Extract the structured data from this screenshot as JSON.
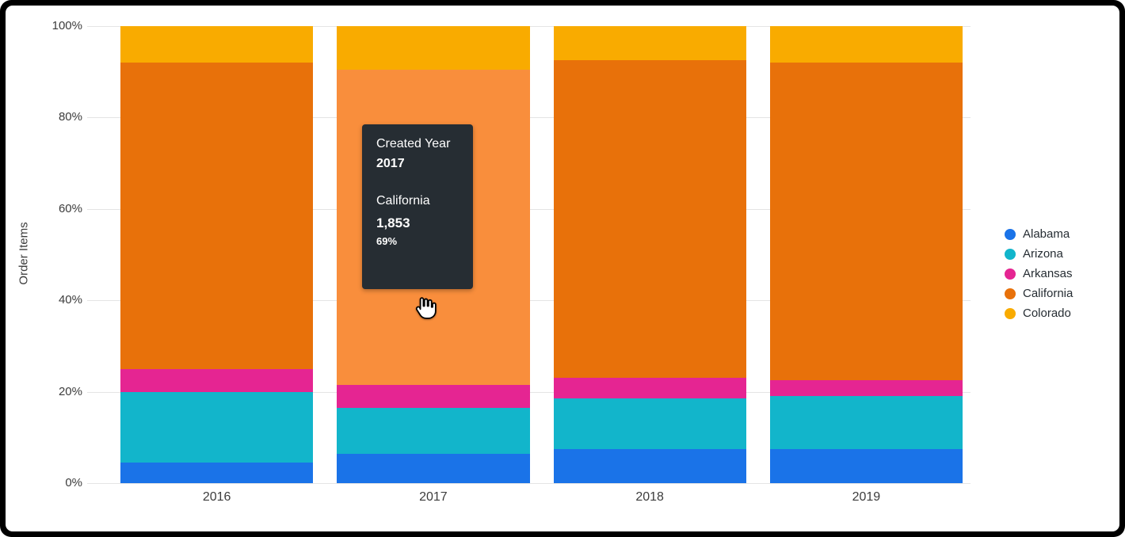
{
  "page": {
    "frame_color": "#000000",
    "card_color": "#ffffff"
  },
  "chart_data": {
    "type": "bar",
    "stacked": true,
    "percent_stacked": true,
    "title": "",
    "xlabel": "",
    "ylabel": "Order Items",
    "ylim": [
      0,
      100
    ],
    "y_ticks": [
      "0%",
      "20%",
      "40%",
      "60%",
      "80%",
      "100%"
    ],
    "grid": true,
    "categories": [
      "2016",
      "2017",
      "2018",
      "2019"
    ],
    "series": [
      {
        "name": "Alabama",
        "color": "#1A73E8",
        "values": [
          4.5,
          6.5,
          7.5,
          7.5
        ]
      },
      {
        "name": "Arizona",
        "color": "#12B5CB",
        "values": [
          15.5,
          10.0,
          11.0,
          11.5
        ]
      },
      {
        "name": "Arkansas",
        "color": "#E52592",
        "values": [
          5.0,
          5.0,
          4.5,
          3.5
        ]
      },
      {
        "name": "California",
        "color": "#E8710A",
        "hover_color": "#F98E3C",
        "values": [
          67.0,
          69.0,
          69.5,
          69.5
        ]
      },
      {
        "name": "Colorado",
        "color": "#F9AB00",
        "values": [
          8.0,
          9.5,
          7.5,
          8.0
        ]
      }
    ],
    "legend": {
      "position": "right",
      "items": [
        "Alabama",
        "Arizona",
        "Arkansas",
        "California",
        "Colorado"
      ]
    },
    "hover": {
      "category": "2017",
      "series": "California"
    }
  },
  "tooltip": {
    "dimension_label": "Created Year",
    "dimension_value": "2017",
    "series_label": "California",
    "value": "1,853",
    "percent": "69%"
  }
}
